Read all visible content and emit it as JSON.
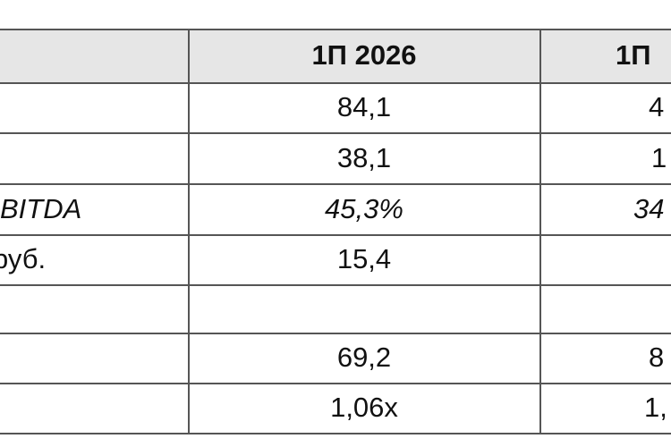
{
  "table": {
    "header": {
      "col2": "1П 2026",
      "col3": "1П"
    },
    "rows": [
      {
        "col2": "84,1",
        "col3": "4"
      },
      {
        "col2": "38,1",
        "col3": "1"
      },
      {
        "label": "BITDA",
        "col2": "45,3%",
        "col3": "34"
      },
      {
        "label": "руб.",
        "col2": "15,4"
      },
      {},
      {
        "col2": "69,2",
        "col3": "8"
      },
      {
        "col2": "1,06x",
        "col3": "1,"
      }
    ]
  }
}
